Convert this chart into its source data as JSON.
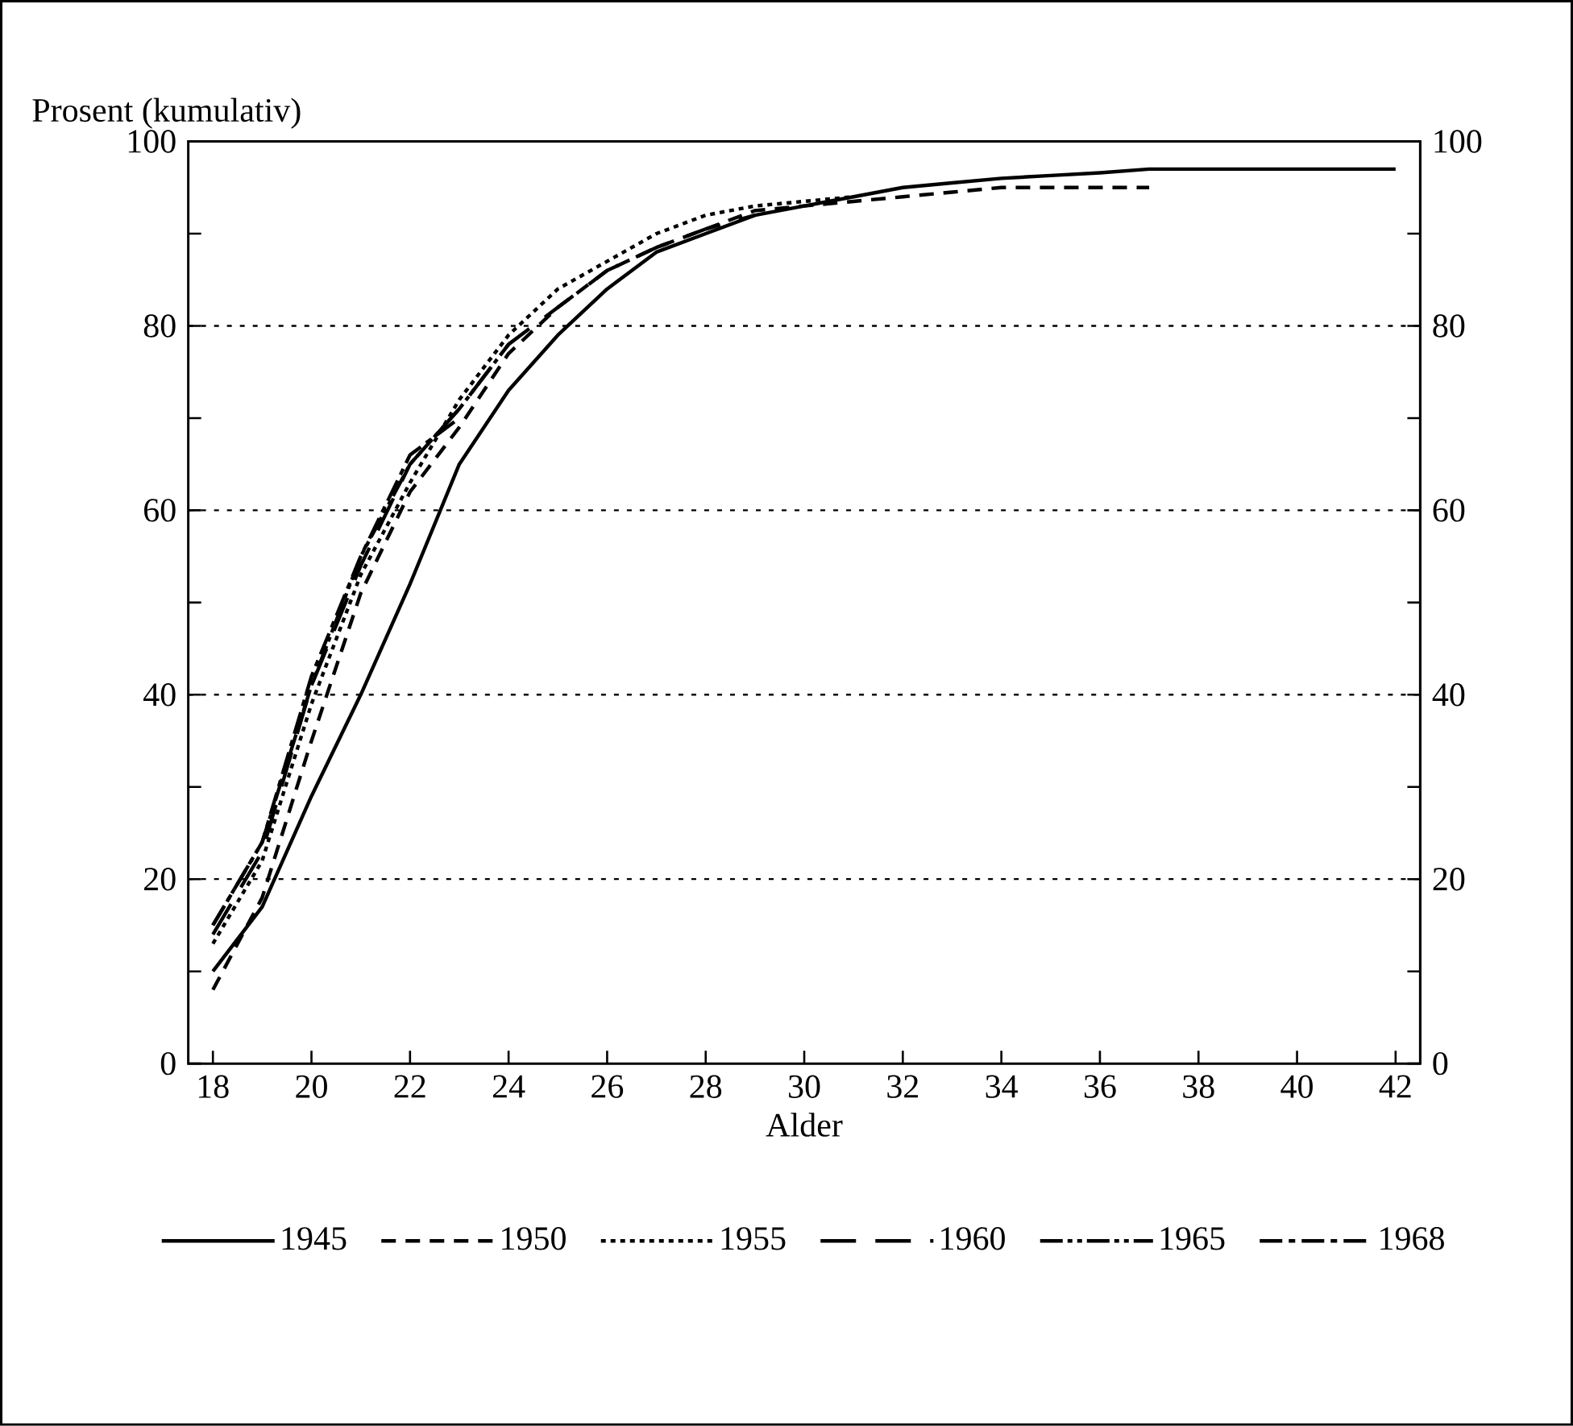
{
  "chart_data": {
    "type": "line",
    "xlabel": "Alder",
    "ylabel": "Prosent (kumulativ)",
    "xlim": [
      17.5,
      42.5
    ],
    "xticks": [
      18,
      20,
      22,
      24,
      26,
      28,
      30,
      32,
      34,
      36,
      38,
      40,
      42
    ],
    "ylim": [
      0,
      100
    ],
    "yticks": [
      0,
      {
        "value": 10,
        "label": null
      },
      20,
      {
        "value": 30,
        "label": null
      },
      40,
      {
        "value": 50,
        "label": null
      },
      60,
      {
        "value": 70,
        "label": null
      },
      80,
      {
        "value": 90,
        "label": null
      },
      100
    ],
    "y2lim": [
      0,
      100
    ],
    "y2ticks": [
      0,
      {
        "value": 10,
        "label": null
      },
      20,
      {
        "value": 30,
        "label": null
      },
      40,
      {
        "value": 50,
        "label": null
      },
      60,
      {
        "value": 70,
        "label": null
      },
      80,
      {
        "value": 90,
        "label": null
      },
      100
    ],
    "grid": "y",
    "legend": "bottom",
    "series": [
      {
        "name": "1945",
        "color": "#000000",
        "line_style": "solid",
        "x": [
          18,
          19,
          20,
          21,
          22,
          23,
          24,
          25,
          26,
          27,
          28,
          29,
          30,
          31,
          32,
          33,
          34,
          35,
          36,
          37,
          38,
          39,
          40,
          41,
          42
        ],
        "values": [
          10,
          17,
          29,
          40,
          52,
          65,
          73,
          79,
          84,
          88,
          90,
          92,
          93,
          94,
          95,
          95.5,
          96,
          96.3,
          96.6,
          97,
          97,
          97,
          97,
          97,
          97
        ]
      },
      {
        "name": "1950",
        "color": "#000000",
        "line_style": "dashed",
        "x": [
          18,
          19,
          20,
          21,
          22,
          23,
          24,
          25,
          26,
          27,
          28,
          29,
          30,
          31,
          32,
          33,
          34,
          35,
          36,
          37
        ],
        "values": [
          8,
          18,
          35,
          51,
          62,
          69,
          77,
          82,
          86,
          88.5,
          90.5,
          92.5,
          93,
          93.5,
          94,
          94.5,
          95,
          95,
          95,
          95
        ]
      },
      {
        "name": "1955",
        "color": "#000000",
        "line_style": "dotted",
        "x": [
          18,
          19,
          20,
          21,
          22,
          23,
          24,
          25,
          26,
          27,
          28,
          29,
          30,
          31
        ],
        "values": [
          13,
          22,
          39,
          53,
          63,
          72,
          79,
          84,
          87,
          90,
          92,
          93,
          93.5,
          94
        ]
      },
      {
        "name": "1960",
        "color": "#000000",
        "line_style": "long dashed",
        "x": [
          18,
          19,
          20,
          21,
          22,
          23,
          24,
          25,
          26,
          27,
          28,
          29
        ],
        "values": [
          14,
          23,
          41,
          54,
          65,
          71,
          78,
          82,
          86,
          88.5,
          90.5,
          92
        ]
      },
      {
        "name": "1965",
        "color": "#000000",
        "line_style": "dash dot dot",
        "x": [
          18,
          19,
          20,
          21,
          22,
          23,
          24
        ],
        "values": [
          15,
          24,
          41,
          55,
          65,
          71,
          78
        ]
      },
      {
        "name": "1968",
        "color": "#000000",
        "line_style": "dash dot",
        "x": [
          18,
          19,
          20,
          21,
          22,
          23
        ],
        "values": [
          15,
          24,
          42,
          55,
          66,
          70
        ]
      }
    ]
  }
}
